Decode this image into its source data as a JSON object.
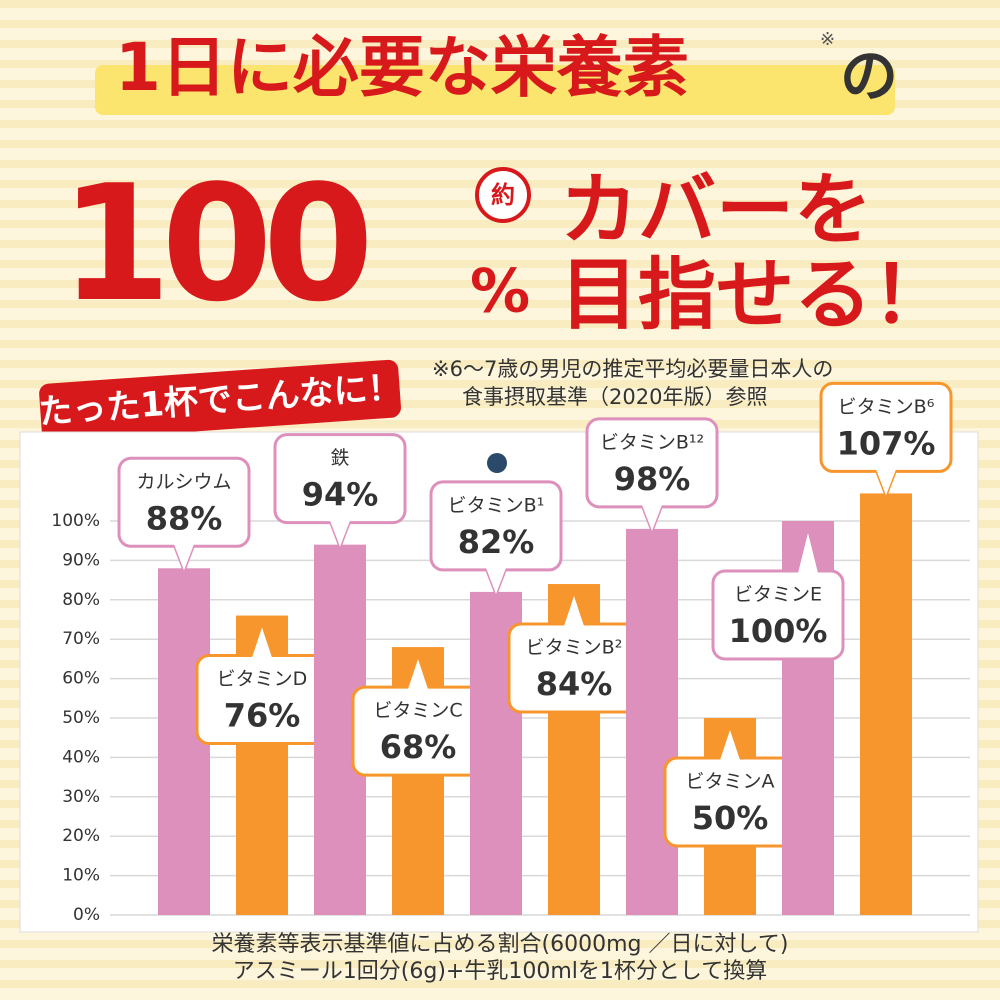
{
  "header": {
    "title": "1日に必要な栄養素",
    "title_mark": "※",
    "title_end": "の",
    "big_number": "100",
    "percent": "%",
    "approx": "約",
    "cover": "カバーを",
    "aim": "目指せる！",
    "badge": "たった1杯でこんなに！",
    "note_line1": "※6〜7歳の男児の推定平均必要量日本人の",
    "note_line2": "食事摂取基準（2020年版）参照"
  },
  "chart_data": {
    "type": "bar",
    "categories": [
      "カルシウム",
      "ビタミンD",
      "鉄",
      "ビタミンC",
      "ビタミンB¹",
      "ビタミンB²",
      "ビタミンB¹²",
      "ビタミンA",
      "ビタミンE",
      "ビタミンB⁶"
    ],
    "values": [
      88,
      76,
      94,
      68,
      82,
      84,
      98,
      50,
      100,
      107
    ],
    "value_labels": [
      "88%",
      "76%",
      "94%",
      "68%",
      "82%",
      "84%",
      "98%",
      "50%",
      "100%",
      "107%"
    ],
    "colors": [
      "#dd90bb",
      "#f7962c",
      "#dd90bb",
      "#f7962c",
      "#dd90bb",
      "#f7962c",
      "#dd90bb",
      "#f7962c",
      "#dd90bb",
      "#f7962c"
    ],
    "ylim": [
      0,
      120
    ],
    "yticks": [
      {
        "value": 0,
        "label": "0%"
      },
      {
        "value": 10,
        "label": "10%"
      },
      {
        "value": 20,
        "label": "20%"
      },
      {
        "value": 30,
        "label": "30%"
      },
      {
        "value": 40,
        "label": "40%"
      },
      {
        "value": 50,
        "label": "50%"
      },
      {
        "value": 60,
        "label": "60%"
      },
      {
        "value": 70,
        "label": "70%"
      },
      {
        "value": 80,
        "label": "80%"
      },
      {
        "value": 90,
        "label": "90%"
      },
      {
        "value": 100,
        "label": "100%"
      }
    ],
    "grid": true,
    "footnote_line1": "栄養素等表示基準値に占める割合(6000mg ／日に対して)",
    "footnote_line2": "アスミール1回分(6g)+牛乳100mlを1杯分として換算"
  }
}
